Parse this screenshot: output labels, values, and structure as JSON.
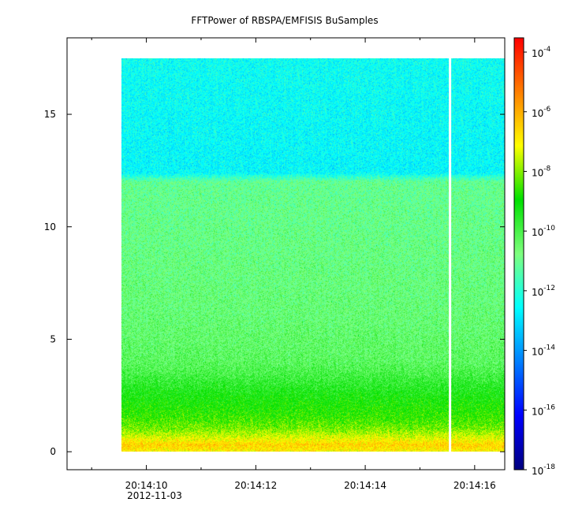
{
  "chart_data": {
    "type": "heatmap",
    "title": "FFTPower of RBSPA/EMFISIS  BuSamples",
    "xlabel": "",
    "ylabel": "",
    "x_axis": {
      "kind": "time",
      "date": "2012-11-03",
      "range": [
        "20:14:08.55",
        "20:14:16.55"
      ],
      "tick_labels": [
        "20:14:10",
        "20:14:12",
        "20:14:14",
        "20:14:16"
      ],
      "tick_values": [
        "20:14:10",
        "20:14:12",
        "20:14:14",
        "20:14:16"
      ],
      "minor_tick_values": [
        "20:14:09",
        "20:14:11",
        "20:14:13",
        "20:14:15"
      ],
      "date_label": "2012-11-03"
    },
    "y_axis": {
      "range": [
        -0.8,
        18.4
      ],
      "tick_values": [
        0,
        5,
        10,
        15
      ],
      "tick_labels": [
        "0",
        "5",
        "10",
        "15"
      ]
    },
    "colorbar": {
      "scale": "log",
      "range": [
        1e-18,
        0.0003
      ],
      "tick_values": [
        -18,
        -16,
        -14,
        -12,
        -10,
        -8,
        -6,
        -4
      ],
      "tick_base": "10",
      "tick_exponents": [
        "-18",
        "-16",
        "-14",
        "-12",
        "-10",
        "-8",
        "-6",
        "-4"
      ],
      "colormap": [
        "#00007f",
        "#0000ff",
        "#007fff",
        "#00ffff",
        "#7fff7f",
        "#00e000",
        "#ffff00",
        "#ff7f00",
        "#ff0000"
      ]
    },
    "data_extent": {
      "x_start": "20:14:09.55",
      "x_end": "20:14:16.55",
      "y_min": 0,
      "y_max": 17.5,
      "gap_at": "20:14:15.55"
    },
    "power_profile": [
      {
        "y": 0.0,
        "log_power": -7.0
      },
      {
        "y": 0.3,
        "log_power": -6.5
      },
      {
        "y": 0.6,
        "log_power": -7.3
      },
      {
        "y": 1.0,
        "log_power": -8.1
      },
      {
        "y": 1.5,
        "log_power": -8.6
      },
      {
        "y": 2.0,
        "log_power": -8.9
      },
      {
        "y": 2.5,
        "log_power": -9.2
      },
      {
        "y": 3.0,
        "log_power": -9.6
      },
      {
        "y": 3.5,
        "log_power": -10.0
      },
      {
        "y": 4.0,
        "log_power": -10.3
      },
      {
        "y": 6.0,
        "log_power": -10.6
      },
      {
        "y": 9.0,
        "log_power": -10.8
      },
      {
        "y": 12.0,
        "log_power": -11.0
      },
      {
        "y": 12.4,
        "log_power": -12.6
      },
      {
        "y": 15.0,
        "log_power": -12.5
      },
      {
        "y": 17.5,
        "log_power": -12.4
      }
    ]
  }
}
